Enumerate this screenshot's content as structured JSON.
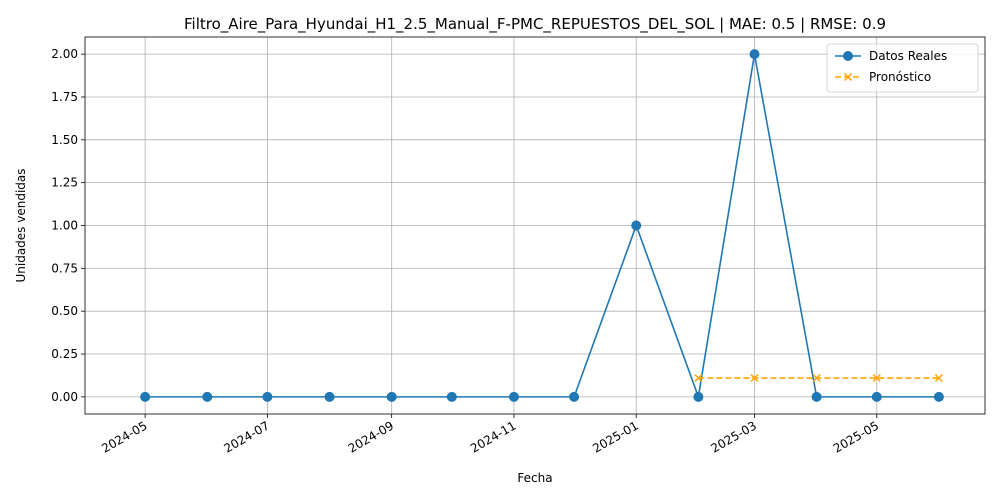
{
  "chart_data": {
    "type": "line",
    "title": "Filtro_Aire_Para_Hyundai_H1_2.5_Manual_F-PMC_REPUESTOS_DEL_SOL | MAE: 0.5 | RMSE: 0.9",
    "xlabel": "Fecha",
    "ylabel": "Unidades vendidas",
    "xlim": [
      "2024-04-01",
      "2025-06-24"
    ],
    "ylim": [
      -0.1,
      2.1
    ],
    "x_ticks": [
      "2024-05",
      "2024-07",
      "2024-09",
      "2024-11",
      "2025-01",
      "2025-03",
      "2025-05"
    ],
    "y_ticks": [
      "0.00",
      "0.25",
      "0.50",
      "0.75",
      "1.00",
      "1.25",
      "1.50",
      "1.75",
      "2.00"
    ],
    "grid": true,
    "legend_position": "top-right",
    "series": [
      {
        "name": "Datos Reales",
        "color": "#1f77b4",
        "line_style": "solid",
        "marker": "circle",
        "x": [
          "2024-05-01",
          "2024-06-01",
          "2024-07-01",
          "2024-08-01",
          "2024-09-01",
          "2024-10-01",
          "2024-11-01",
          "2024-12-01",
          "2025-01-01",
          "2025-02-01",
          "2025-03-01",
          "2025-04-01",
          "2025-05-01",
          "2025-06-01"
        ],
        "values": [
          0,
          0,
          0,
          0,
          0,
          0,
          0,
          0,
          1,
          0,
          2,
          0,
          0,
          0
        ]
      },
      {
        "name": "Pronóstico",
        "color": "#ffa500",
        "line_style": "dashed",
        "marker": "x",
        "x": [
          "2025-02-01",
          "2025-03-01",
          "2025-04-01",
          "2025-05-01",
          "2025-06-01"
        ],
        "values": [
          0.11,
          0.11,
          0.11,
          0.11,
          0.11
        ]
      }
    ]
  }
}
